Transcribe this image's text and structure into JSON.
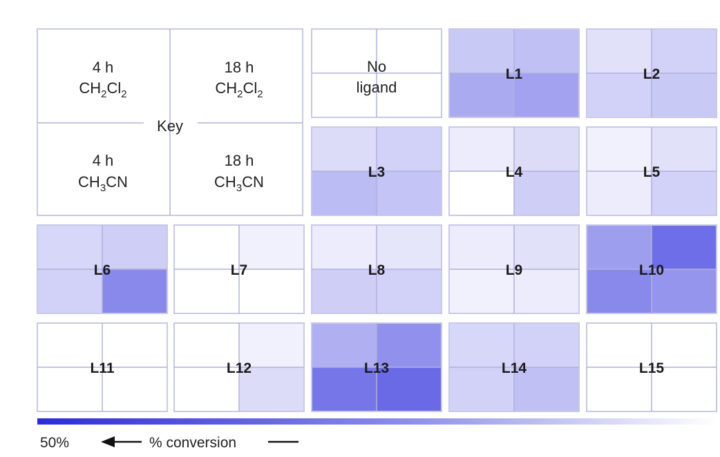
{
  "chart_data": {
    "type": "heatmap",
    "key": {
      "label": "Key",
      "quadrants": {
        "top_left": {
          "line1": "4 h",
          "line2_base": "CH",
          "line2_sub1": "2",
          "line2_mid": "Cl",
          "line2_sub2": "2"
        },
        "top_right": {
          "line1": "18 h",
          "line2_base": "CH",
          "line2_sub1": "2",
          "line2_mid": "Cl",
          "line2_sub2": "2"
        },
        "bottom_left": {
          "line1": "4 h",
          "line2_base": "CH",
          "line2_sub1": "3",
          "line2_mid": "CN",
          "line2_sub2": ""
        },
        "bottom_right": {
          "line1": "18 h",
          "line2_base": "CH",
          "line2_sub1": "3",
          "line2_mid": "CN",
          "line2_sub2": ""
        }
      }
    },
    "quadrant_order": [
      "4 h CH2Cl2",
      "18 h CH2Cl2",
      "4 h CH3CN",
      "18 h CH3CN"
    ],
    "cells": [
      {
        "label": "No\nligand",
        "values": [
          0,
          0,
          0,
          0
        ]
      },
      {
        "label": "L1",
        "values": [
          10,
          12,
          17,
          19
        ]
      },
      {
        "label": "L2",
        "values": [
          5,
          8,
          8,
          10
        ]
      },
      {
        "label": "L3",
        "values": [
          6,
          8,
          13,
          11
        ]
      },
      {
        "label": "L4",
        "values": [
          3,
          6,
          0,
          9
        ]
      },
      {
        "label": "L5",
        "values": [
          2,
          5,
          3,
          8
        ]
      },
      {
        "label": "L6",
        "values": [
          7,
          9,
          8,
          25
        ]
      },
      {
        "label": "L7",
        "values": [
          0,
          2,
          0,
          0
        ]
      },
      {
        "label": "L8",
        "values": [
          3,
          4,
          9,
          8
        ]
      },
      {
        "label": "L9",
        "values": [
          3,
          5,
          2,
          3
        ]
      },
      {
        "label": "L10",
        "values": [
          20,
          32,
          25,
          22
        ]
      },
      {
        "label": "L11",
        "values": [
          0,
          0,
          0,
          0
        ]
      },
      {
        "label": "L12",
        "values": [
          0,
          2,
          0,
          6
        ]
      },
      {
        "label": "L13",
        "values": [
          16,
          23,
          30,
          33
        ]
      },
      {
        "label": "L14",
        "values": [
          7,
          8,
          8,
          12
        ]
      },
      {
        "label": "L15",
        "values": [
          0,
          0,
          0,
          0
        ]
      }
    ],
    "colorbar": {
      "max_label": "50%",
      "axis_label": "% conversion",
      "max_value": 50,
      "min_value": 0,
      "color_max": "#2b2bdd",
      "color_min": "#ffffff"
    },
    "colors": {
      "cell_border": "#c8c8e8",
      "divider": "#b0b0dc"
    }
  }
}
